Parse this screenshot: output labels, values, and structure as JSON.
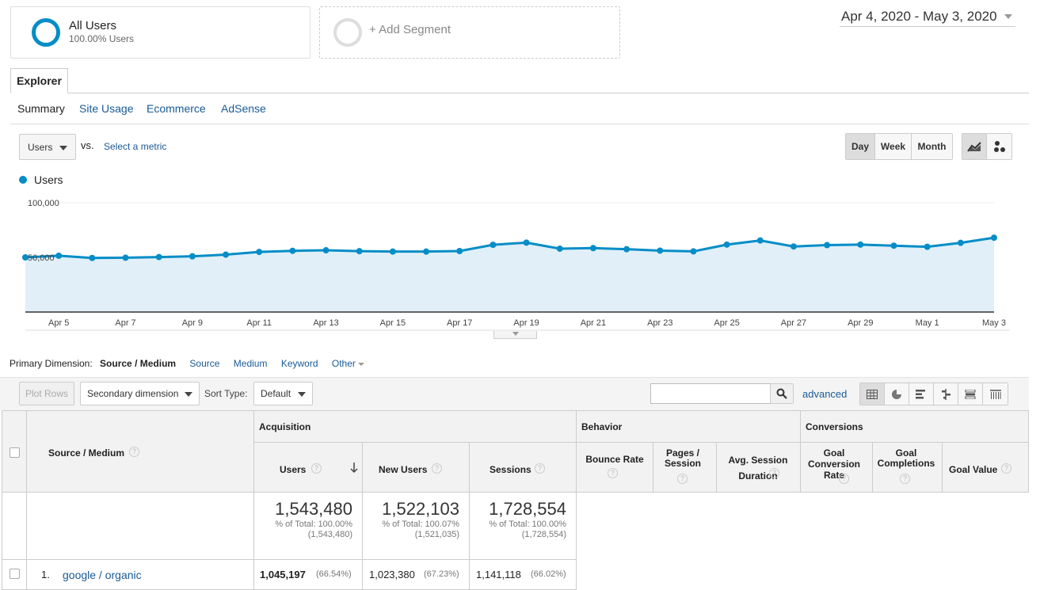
{
  "segments": {
    "all_users": {
      "title": "All Users",
      "subtitle": "100.00% Users",
      "color": "#058dc7"
    },
    "add_segment": {
      "label": "+ Add Segment"
    }
  },
  "date_range": "Apr 4, 2020 - May 3, 2020",
  "tabs": {
    "explorer": "Explorer"
  },
  "subtabs": [
    "Summary",
    "Site Usage",
    "Ecommerce",
    "AdSense"
  ],
  "metric_select": {
    "value": "Users",
    "vs": "vs.",
    "select_metric": "Select a metric"
  },
  "period_buttons": [
    "Day",
    "Week",
    "Month"
  ],
  "period_active": "Day",
  "chart_data": {
    "type": "area",
    "series": [
      {
        "name": "Users",
        "color": "#058dc7",
        "values": [
          50000,
          51500,
          49500,
          49700,
          50300,
          51000,
          52500,
          55000,
          56000,
          56500,
          55700,
          55300,
          55300,
          55800,
          61500,
          63500,
          58000,
          58500,
          57500,
          56200,
          55500,
          61700,
          65500,
          60000,
          61200,
          61700,
          60700,
          59700,
          63300,
          68000
        ]
      }
    ],
    "x_labels": [
      "Apr 5",
      "Apr 7",
      "Apr 9",
      "Apr 11",
      "Apr 13",
      "Apr 15",
      "Apr 17",
      "Apr 19",
      "Apr 21",
      "Apr 23",
      "Apr 25",
      "Apr 27",
      "Apr 29",
      "May 1",
      "May 3"
    ],
    "y_ticks": [
      "100,000",
      "50,000"
    ],
    "ylim": [
      0,
      100000
    ],
    "legend": "Users",
    "grid": true
  },
  "dimensions": {
    "label": "Primary Dimension:",
    "active": "Source / Medium",
    "options": [
      "Source",
      "Medium",
      "Keyword",
      "Other"
    ]
  },
  "toolbar": {
    "plot_rows": "Plot Rows",
    "secondary_dimension": "Secondary dimension",
    "sort_type_label": "Sort Type:",
    "sort_type_value": "Default",
    "advanced": "advanced",
    "search_placeholder": ""
  },
  "table": {
    "groups": {
      "acquisition": "Acquisition",
      "behavior": "Behavior",
      "conversions": "Conversions"
    },
    "dimension_header": "Source / Medium",
    "columns": {
      "users": "Users",
      "new_users": "New Users",
      "sessions": "Sessions",
      "bounce_rate": "Bounce Rate",
      "pages_session": "Pages / Session",
      "avg_session_duration": "Avg. Session Duration",
      "goal_conversion_rate": "Goal Conversion Rate",
      "goal_completions": "Goal Completions",
      "goal_value": "Goal Value"
    },
    "totals": {
      "users": {
        "value": "1,543,480",
        "pct": "% of Total: 100.00%",
        "abs": "(1,543,480)"
      },
      "new_users": {
        "value": "1,522,103",
        "pct": "% of Total: 100.07%",
        "abs": "(1,521,035)"
      },
      "sessions": {
        "value": "1,728,554",
        "pct": "% of Total: 100.00%",
        "abs": "(1,728,554)"
      }
    },
    "rows": [
      {
        "index": "1.",
        "source": "google / organic",
        "users": "1,045,197",
        "users_pct": "(66.54%)",
        "new_users": "1,023,380",
        "new_users_pct": "(67.23%)",
        "sessions": "1,141,118",
        "sessions_pct": "(66.02%)"
      }
    ]
  }
}
